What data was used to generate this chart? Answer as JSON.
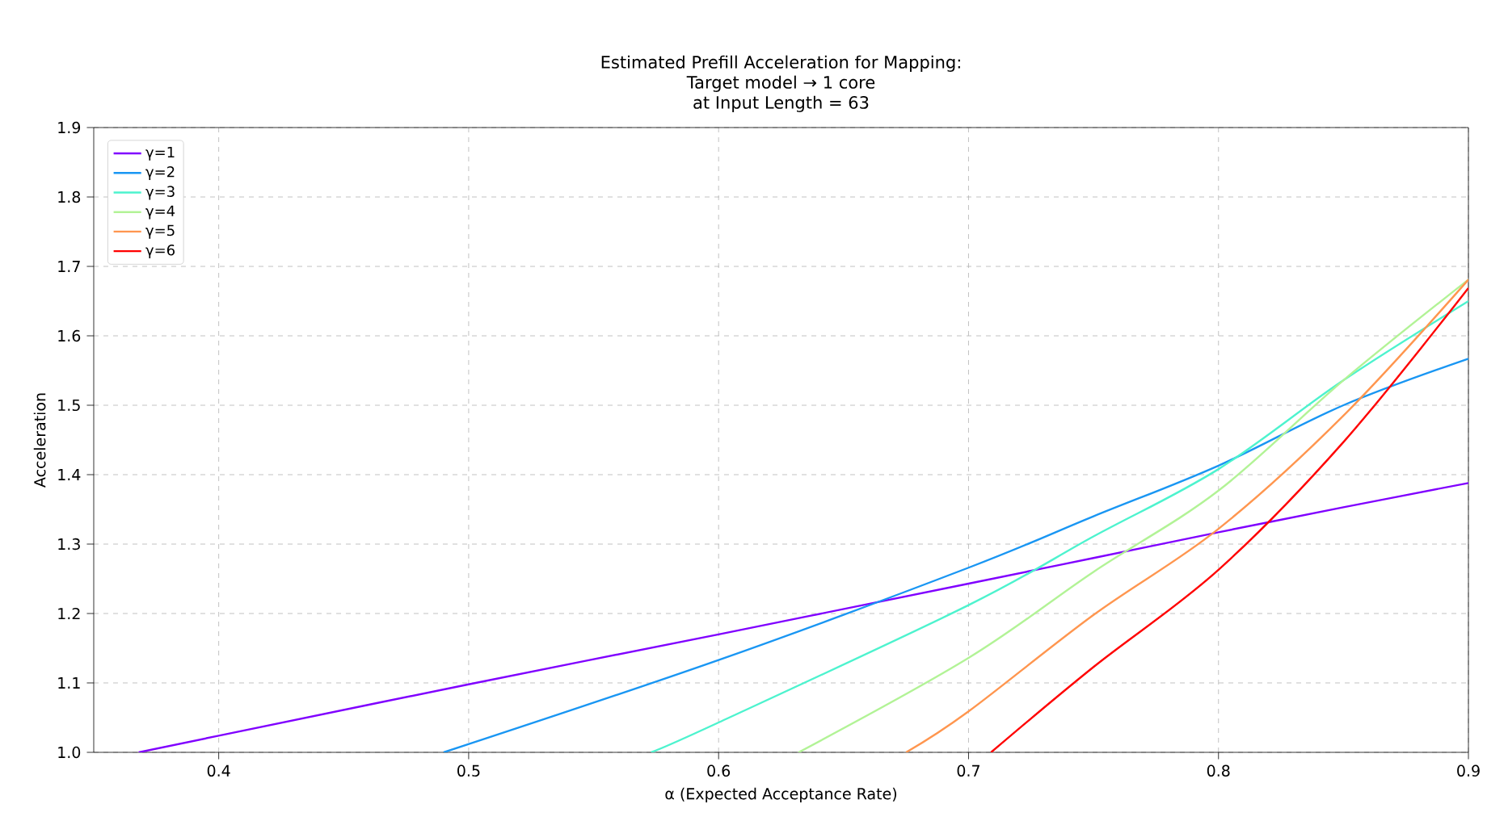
{
  "chart_data": {
    "type": "line",
    "title": "Estimated Prefill Acceleration for Mapping:",
    "subtitle": "Target model → 1 core",
    "annotations": [
      "at Input Length = 63"
    ],
    "xlabel": "α (Expected Acceptance Rate)",
    "ylabel": "Acceleration",
    "xlim": [
      0.35,
      0.9
    ],
    "ylim": [
      1.0,
      1.9
    ],
    "xticks": [
      0.4,
      0.5,
      0.6,
      0.7,
      0.8,
      0.9
    ],
    "yticks": [
      {
        "value": 1.0,
        "label": "1.0"
      },
      1.1,
      1.2,
      1.3,
      1.4,
      1.5,
      1.6,
      1.7,
      1.8,
      1.9
    ],
    "grid": true,
    "legend": "top left",
    "line_style": "solid",
    "marker": "none",
    "series": [
      {
        "name": "γ=1",
        "color": "#8000ff",
        "x": [
          0.368,
          0.4,
          0.5,
          0.6,
          0.7,
          0.75,
          0.8,
          0.85,
          0.9
        ],
        "values": [
          1.0,
          1.024,
          1.098,
          1.17,
          1.243,
          1.28,
          1.317,
          1.353,
          1.388
        ]
      },
      {
        "name": "γ=2",
        "color": "#1996f3",
        "x": [
          0.49,
          0.6,
          0.7,
          0.75,
          0.8,
          0.85,
          0.9
        ],
        "values": [
          1.0,
          1.133,
          1.266,
          1.34,
          1.413,
          1.5,
          1.567
        ]
      },
      {
        "name": "γ=3",
        "color": "#4df3ce",
        "x": [
          0.573,
          0.6,
          0.7,
          0.75,
          0.8,
          0.85,
          0.9
        ],
        "values": [
          1.0,
          1.043,
          1.212,
          1.311,
          1.408,
          1.536,
          1.65
        ]
      },
      {
        "name": "γ=4",
        "color": "#b2f396",
        "x": [
          0.632,
          0.7,
          0.75,
          0.8,
          0.85,
          0.9
        ],
        "values": [
          1.0,
          1.136,
          1.26,
          1.377,
          1.536,
          1.681
        ]
      },
      {
        "name": "γ=5",
        "color": "#ff964f",
        "x": [
          0.675,
          0.7,
          0.75,
          0.8,
          0.85,
          0.9
        ],
        "values": [
          1.0,
          1.059,
          1.198,
          1.322,
          1.485,
          1.681
        ]
      },
      {
        "name": "γ=6",
        "color": "#ff0000",
        "x": [
          0.709,
          0.75,
          0.8,
          0.85,
          0.9
        ],
        "values": [
          1.0,
          1.123,
          1.263,
          1.447,
          1.669
        ]
      }
    ]
  }
}
